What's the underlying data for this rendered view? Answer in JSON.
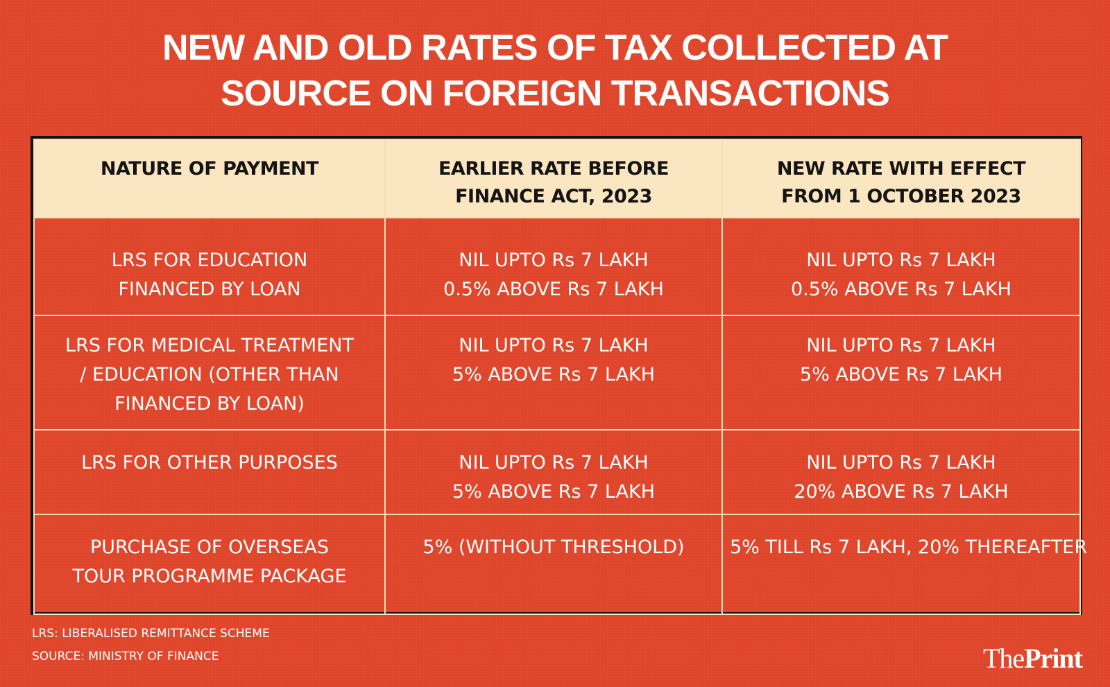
{
  "title": {
    "line1": "NEW AND OLD RATES OF TAX COLLECTED AT",
    "line2": "SOURCE ON FOREIGN TRANSACTIONS"
  },
  "table": {
    "headers": [
      {
        "line1": "NATURE OF PAYMENT",
        "line2": ""
      },
      {
        "line1": "EARLIER RATE BEFORE",
        "line2": "FINANCE ACT, 2023"
      },
      {
        "line1": "NEW RATE WITH EFFECT",
        "line2": "FROM 1 OCTOBER 2023"
      }
    ],
    "rows": [
      {
        "nature": [
          "LRS FOR EDUCATION",
          "FINANCED BY LOAN"
        ],
        "earlier": [
          "NIL UPTO Rs 7 LAKH",
          "0.5% ABOVE Rs 7 LAKH"
        ],
        "new": [
          "NIL UPTO Rs 7 LAKH",
          "0.5% ABOVE Rs 7 LAKH"
        ]
      },
      {
        "nature": [
          "LRS FOR MEDICAL TREATMENT",
          "/ EDUCATION (OTHER THAN",
          "FINANCED BY LOAN)"
        ],
        "earlier": [
          "NIL UPTO Rs 7 LAKH",
          "5% ABOVE Rs 7 LAKH"
        ],
        "new": [
          "NIL UPTO Rs 7 LAKH",
          "5% ABOVE Rs 7 LAKH"
        ]
      },
      {
        "nature": [
          "LRS FOR OTHER PURPOSES"
        ],
        "earlier": [
          "NIL UPTO Rs 7 LAKH",
          "5% ABOVE Rs 7 LAKH"
        ],
        "new": [
          "NIL UPTO Rs 7 LAKH",
          "20% ABOVE Rs 7 LAKH"
        ]
      },
      {
        "nature": [
          "PURCHASE OF OVERSEAS",
          "TOUR PROGRAMME PACKAGE"
        ],
        "earlier": [
          "5% (WITHOUT THRESHOLD)"
        ],
        "new": [
          "5% TILL Rs 7 LAKH, 20% THEREAFTER"
        ]
      }
    ]
  },
  "footnotes": {
    "lrs": "LRS: LIBERALISED REMITTANCE SCHEME",
    "source": "SOURCE:  MINISTRY OF FINANCE"
  },
  "logo": {
    "the": "The",
    "print": "Print"
  },
  "colors": {
    "background": "#e0472c",
    "header_background": "#fbe6c2",
    "grid_lines": "#f3dfb3",
    "frame": "#111111",
    "text_light": "#ffffff",
    "text_dark": "#141414"
  }
}
